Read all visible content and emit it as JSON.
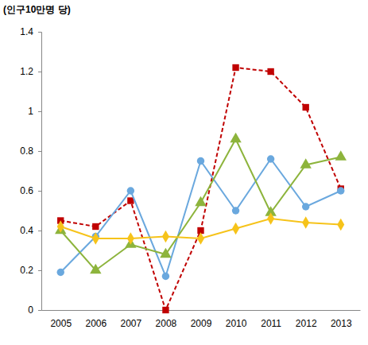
{
  "chart_data": {
    "type": "line",
    "y_label": "(인구10만명 당)",
    "categories": [
      "2005",
      "2006",
      "2007",
      "2008",
      "2009",
      "2010",
      "2011",
      "2012",
      "2013"
    ],
    "series": [
      {
        "color": "#C00000",
        "marker": "square",
        "line_style": "dashed",
        "values": [
          0.45,
          0.42,
          0.55,
          0.0,
          0.4,
          1.22,
          1.2,
          1.02,
          0.61
        ]
      },
      {
        "color": "#6AA8DE",
        "marker": "circle",
        "line_style": "solid",
        "values": [
          0.19,
          0.37,
          0.6,
          0.17,
          0.75,
          0.5,
          0.76,
          0.52,
          0.6
        ]
      },
      {
        "color": "#8DB43C",
        "marker": "triangle",
        "line_style": "solid",
        "values": [
          0.4,
          0.2,
          0.33,
          0.28,
          0.54,
          0.86,
          0.49,
          0.73,
          0.77
        ]
      },
      {
        "color": "#F6C31A",
        "marker": "diamond",
        "line_style": "solid",
        "values": [
          0.42,
          0.36,
          0.36,
          0.37,
          0.36,
          0.41,
          0.46,
          0.44,
          0.43
        ]
      }
    ],
    "ylim": [
      0,
      1.4
    ],
    "yticks": [
      0,
      0.2,
      0.4,
      0.6,
      0.8,
      1,
      1.2,
      1.4
    ],
    "grid": false
  }
}
